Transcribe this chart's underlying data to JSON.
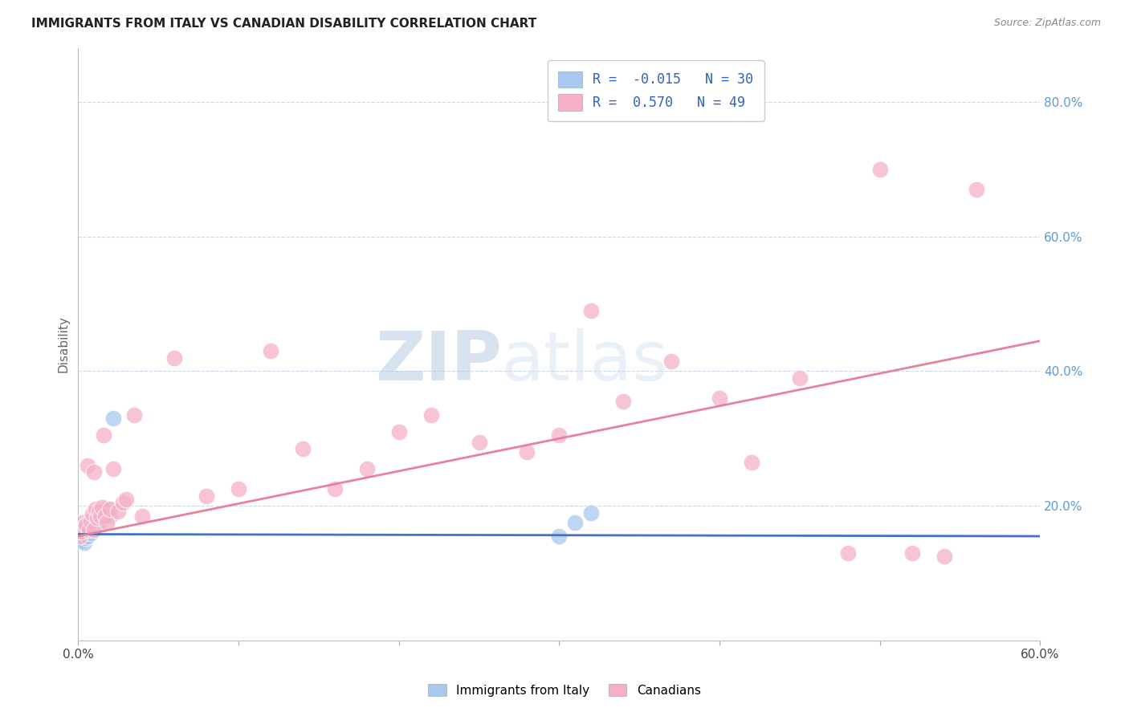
{
  "title": "IMMIGRANTS FROM ITALY VS CANADIAN DISABILITY CORRELATION CHART",
  "source": "Source: ZipAtlas.com",
  "ylabel": "Disability",
  "xlim": [
    0.0,
    0.6
  ],
  "ylim": [
    0.0,
    0.88
  ],
  "legend_label1": "Immigrants from Italy",
  "legend_label2": "Canadians",
  "italy_color": "#a8c8f0",
  "canada_color": "#f5b0c8",
  "italy_line_color": "#4472c4",
  "canada_line_color": "#e8829a",
  "watermark_zip": "ZIP",
  "watermark_atlas": "atlas",
  "italy_R": -0.015,
  "italy_N": 30,
  "canada_R": 0.57,
  "canada_N": 49,
  "italy_x": [
    0.001,
    0.002,
    0.002,
    0.003,
    0.003,
    0.004,
    0.004,
    0.005,
    0.005,
    0.006,
    0.006,
    0.007,
    0.007,
    0.008,
    0.008,
    0.009,
    0.009,
    0.01,
    0.01,
    0.011,
    0.012,
    0.013,
    0.015,
    0.016,
    0.018,
    0.02,
    0.022,
    0.3,
    0.31,
    0.32
  ],
  "italy_y": [
    0.155,
    0.152,
    0.148,
    0.16,
    0.15,
    0.162,
    0.145,
    0.158,
    0.153,
    0.155,
    0.165,
    0.168,
    0.172,
    0.17,
    0.16,
    0.175,
    0.178,
    0.18,
    0.168,
    0.182,
    0.185,
    0.175,
    0.188,
    0.192,
    0.195,
    0.185,
    0.33,
    0.155,
    0.175,
    0.19
  ],
  "canada_x": [
    0.001,
    0.002,
    0.003,
    0.004,
    0.005,
    0.006,
    0.007,
    0.008,
    0.009,
    0.01,
    0.01,
    0.011,
    0.012,
    0.013,
    0.014,
    0.015,
    0.016,
    0.017,
    0.018,
    0.02,
    0.022,
    0.025,
    0.028,
    0.03,
    0.035,
    0.04,
    0.06,
    0.08,
    0.1,
    0.12,
    0.14,
    0.16,
    0.18,
    0.2,
    0.22,
    0.25,
    0.28,
    0.3,
    0.32,
    0.34,
    0.37,
    0.4,
    0.42,
    0.45,
    0.48,
    0.5,
    0.52,
    0.54,
    0.56
  ],
  "canada_y": [
    0.155,
    0.162,
    0.175,
    0.168,
    0.172,
    0.26,
    0.165,
    0.178,
    0.188,
    0.165,
    0.25,
    0.195,
    0.182,
    0.192,
    0.185,
    0.198,
    0.305,
    0.185,
    0.175,
    0.195,
    0.255,
    0.192,
    0.205,
    0.21,
    0.335,
    0.185,
    0.42,
    0.215,
    0.225,
    0.43,
    0.285,
    0.225,
    0.255,
    0.31,
    0.335,
    0.295,
    0.28,
    0.305,
    0.49,
    0.355,
    0.415,
    0.36,
    0.265,
    0.39,
    0.13,
    0.7,
    0.13,
    0.125,
    0.67
  ],
  "background_color": "#ffffff",
  "grid_color": "#c8d8e8"
}
